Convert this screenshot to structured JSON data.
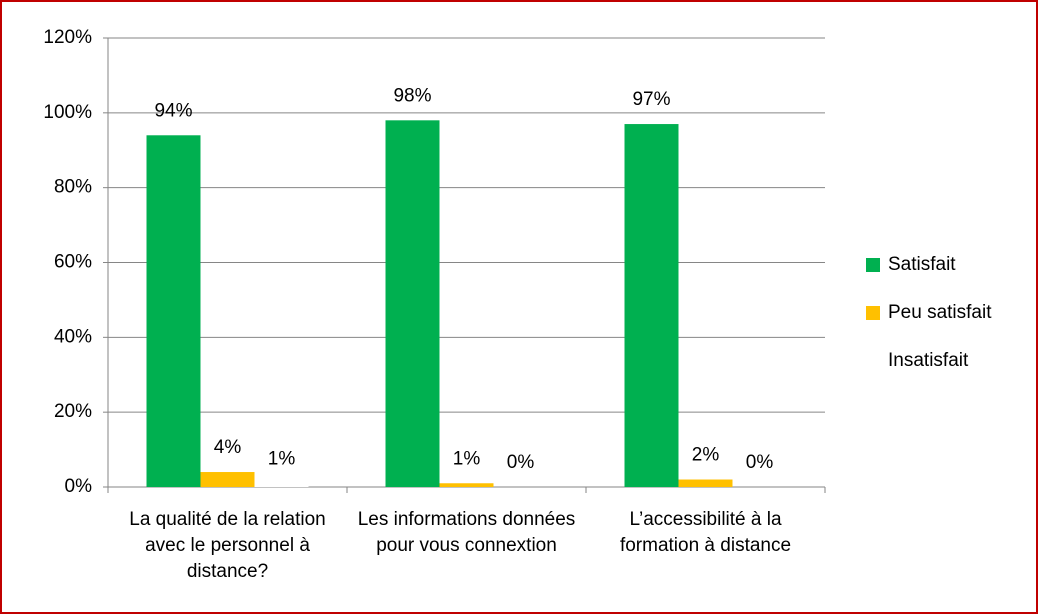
{
  "chart_data": {
    "type": "bar",
    "categories": [
      "La qualité de la relation avec le personnel à distance?",
      "Les informations données pour vous connextion",
      "L’accessibilité à la formation à distance"
    ],
    "series": [
      {
        "name": "Satisfait",
        "color": "#00b050",
        "values": [
          94,
          98,
          97
        ],
        "value_labels": [
          "94%",
          "98%",
          "97%"
        ]
      },
      {
        "name": "Peu satisfait",
        "color": "#ffc000",
        "values": [
          4,
          1,
          2
        ],
        "value_labels": [
          "4%",
          "1%",
          "2%"
        ]
      },
      {
        "name": "Insatisfait",
        "color": "#ffffff",
        "values": [
          1,
          0,
          0
        ],
        "value_labels": [
          "1%",
          "0%",
          "0%"
        ]
      }
    ],
    "ylim": [
      0,
      120
    ],
    "yticks": [
      {
        "value": 0,
        "label": "0%"
      },
      {
        "value": 20,
        "label": "20%"
      },
      {
        "value": 40,
        "label": "40%"
      },
      {
        "value": 60,
        "label": "60%"
      },
      {
        "value": 80,
        "label": "80%"
      },
      {
        "value": 100,
        "label": "100%"
      },
      {
        "value": 120,
        "label": "120%"
      }
    ],
    "grid": true,
    "legend": "right"
  }
}
